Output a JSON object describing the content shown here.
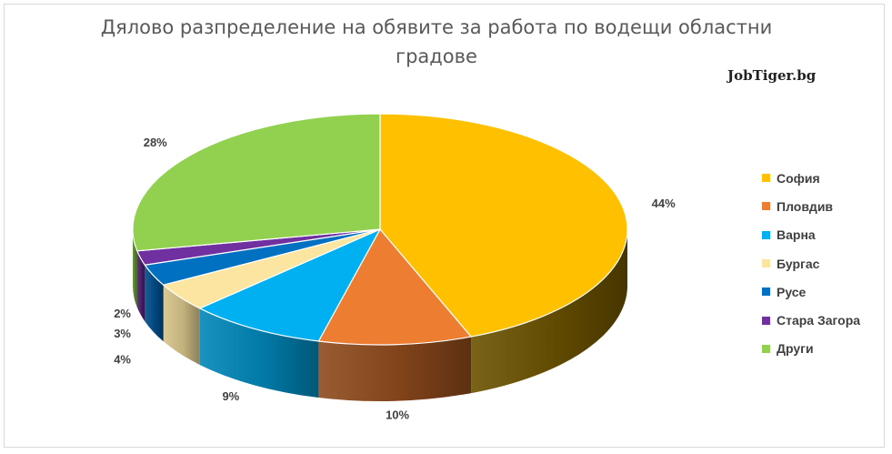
{
  "chart_data": {
    "type": "pie",
    "title": "Дялово разпределение на обявите за работа по водещи областни градове",
    "title_lines": [
      "Дялово разпределение на обявите за работа по водещи областни",
      "градове"
    ],
    "watermark": "JobTiger.bg",
    "categories": [
      "София",
      "Пловдив",
      "Варна",
      "Бургас",
      "Русе",
      "Стара Загора",
      "Други"
    ],
    "values": [
      44,
      10,
      9,
      4,
      3,
      2,
      28
    ],
    "value_labels": [
      "44%",
      "10%",
      "9%",
      "4%",
      "3%",
      "2%",
      "28%"
    ],
    "colors": [
      "#FFC000",
      "#ED7D31",
      "#00B0F0",
      "#FBE5A0",
      "#0070C0",
      "#7030A0",
      "#92D050"
    ],
    "side_colors": [
      "#6B5200",
      "#8E4A1C",
      "#0086B8",
      "#D8C48A",
      "#004E8A",
      "#4E2070",
      "#5E8A30"
    ],
    "legend_position": "right",
    "style": "3d-pie"
  }
}
